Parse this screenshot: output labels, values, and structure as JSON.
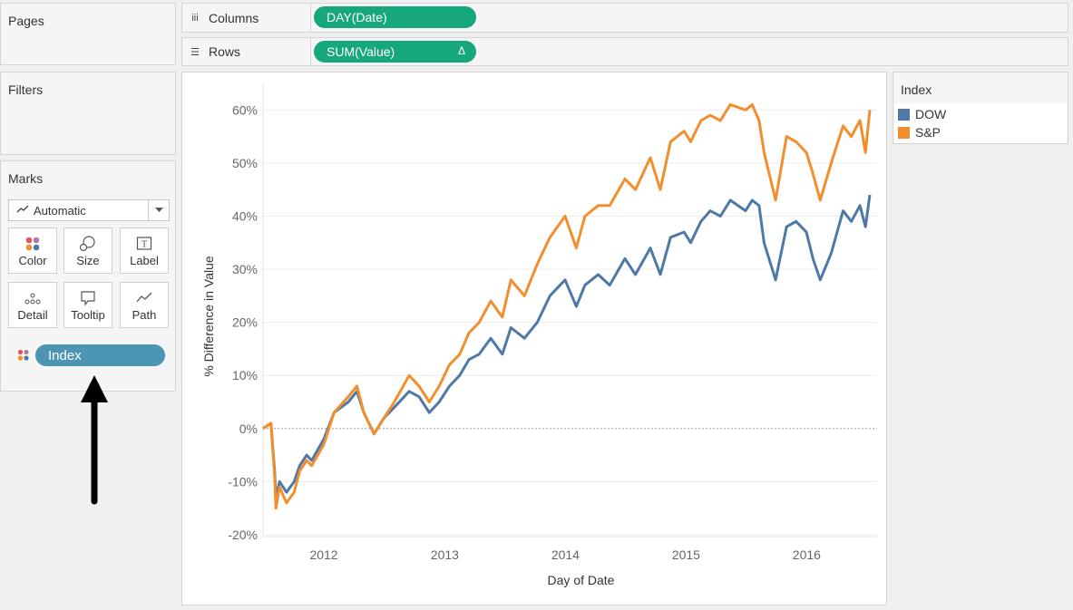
{
  "panels": {
    "pages": {
      "title": "Pages"
    },
    "filters": {
      "title": "Filters"
    },
    "marks": {
      "title": "Marks",
      "mark_type": "Automatic",
      "buttons": {
        "color": "Color",
        "size": "Size",
        "label": "Label",
        "detail": "Detail",
        "tooltip": "Tooltip",
        "path": "Path"
      },
      "field_pill": "Index"
    }
  },
  "shelves": {
    "columns": {
      "label": "Columns",
      "pill": "DAY(Date)"
    },
    "rows": {
      "label": "Rows",
      "pill": "SUM(Value)",
      "pill_badge": "Δ"
    }
  },
  "legend": {
    "title": "Index",
    "items": [
      {
        "label": "DOW",
        "color": "#4e79a7"
      },
      {
        "label": "S&P",
        "color": "#f28e2b"
      }
    ]
  },
  "chart_data": {
    "type": "line",
    "xlabel": "Day of Date",
    "ylabel": "% Difference in Value",
    "x_ticks": [
      "2012",
      "2013",
      "2014",
      "2015",
      "2016"
    ],
    "y_ticks": [
      "60%",
      "50%",
      "40%",
      "30%",
      "20%",
      "10%",
      "0%",
      "-10%",
      "-20%"
    ],
    "ylim": [
      -20,
      65
    ],
    "xlim": [
      "2011-07-01",
      "2016-08-01"
    ],
    "grid": true,
    "zero_line": true,
    "legend_position": "right",
    "series": [
      {
        "name": "DOW",
        "color": "#4e79a7",
        "x": [
          "2011-07-01",
          "2011-07-25",
          "2011-08-05",
          "2011-08-09",
          "2011-08-20",
          "2011-09-10",
          "2011-10-03",
          "2011-10-20",
          "2011-11-10",
          "2011-11-25",
          "2012-01-01",
          "2012-02-01",
          "2012-03-15",
          "2012-04-10",
          "2012-05-01",
          "2012-06-01",
          "2012-07-01",
          "2012-08-01",
          "2012-09-15",
          "2012-10-15",
          "2012-11-15",
          "2012-12-15",
          "2013-01-15",
          "2013-02-15",
          "2013-03-15",
          "2013-04-15",
          "2013-05-20",
          "2013-06-24",
          "2013-07-20",
          "2013-08-30",
          "2013-10-08",
          "2013-11-15",
          "2013-12-31",
          "2014-02-03",
          "2014-03-01",
          "2014-04-10",
          "2014-05-15",
          "2014-06-30",
          "2014-08-01",
          "2014-09-15",
          "2014-10-15",
          "2014-11-15",
          "2014-12-26",
          "2015-01-15",
          "2015-02-15",
          "2015-03-15",
          "2015-04-15",
          "2015-05-15",
          "2015-06-30",
          "2015-07-20",
          "2015-08-10",
          "2015-08-25",
          "2015-09-29",
          "2015-11-01",
          "2015-11-30",
          "2015-12-31",
          "2016-01-20",
          "2016-02-11",
          "2016-03-15",
          "2016-04-20",
          "2016-05-15",
          "2016-06-10",
          "2016-06-27",
          "2016-07-10"
        ],
        "y": [
          0,
          1,
          -8,
          -13,
          -10,
          -12,
          -10,
          -7,
          -5,
          -6,
          -2,
          3,
          5,
          7,
          3,
          -1,
          2,
          4,
          7,
          6,
          3,
          5,
          8,
          10,
          13,
          14,
          17,
          14,
          19,
          17,
          20,
          25,
          28,
          23,
          27,
          29,
          27,
          32,
          29,
          34,
          29,
          36,
          37,
          35,
          39,
          41,
          40,
          43,
          41,
          43,
          42,
          35,
          28,
          38,
          39,
          37,
          32,
          28,
          33,
          41,
          39,
          42,
          38,
          44
        ]
      },
      {
        "name": "S&P",
        "color": "#f28e2b",
        "x": [
          "2011-07-01",
          "2011-07-25",
          "2011-08-05",
          "2011-08-09",
          "2011-08-20",
          "2011-09-10",
          "2011-10-03",
          "2011-10-20",
          "2011-11-10",
          "2011-11-25",
          "2012-01-01",
          "2012-02-01",
          "2012-03-15",
          "2012-04-10",
          "2012-05-01",
          "2012-06-01",
          "2012-07-01",
          "2012-08-01",
          "2012-09-15",
          "2012-10-15",
          "2012-11-15",
          "2012-12-15",
          "2013-01-15",
          "2013-02-15",
          "2013-03-15",
          "2013-04-15",
          "2013-05-20",
          "2013-06-24",
          "2013-07-20",
          "2013-08-30",
          "2013-10-08",
          "2013-11-15",
          "2013-12-31",
          "2014-02-03",
          "2014-03-01",
          "2014-04-10",
          "2014-05-15",
          "2014-06-30",
          "2014-08-01",
          "2014-09-15",
          "2014-10-15",
          "2014-11-15",
          "2014-12-26",
          "2015-01-15",
          "2015-02-15",
          "2015-03-15",
          "2015-04-15",
          "2015-05-15",
          "2015-06-30",
          "2015-07-20",
          "2015-08-10",
          "2015-08-25",
          "2015-09-29",
          "2015-11-01",
          "2015-11-30",
          "2015-12-31",
          "2016-01-20",
          "2016-02-11",
          "2016-03-15",
          "2016-04-20",
          "2016-05-15",
          "2016-06-10",
          "2016-06-27",
          "2016-07-10"
        ],
        "y": [
          0,
          1,
          -9,
          -15,
          -11,
          -14,
          -12,
          -8,
          -6,
          -7,
          -3,
          3,
          6,
          8,
          3,
          -1,
          2,
          5,
          10,
          8,
          5,
          8,
          12,
          14,
          18,
          20,
          24,
          21,
          28,
          25,
          31,
          36,
          40,
          34,
          40,
          42,
          42,
          47,
          45,
          51,
          45,
          54,
          56,
          54,
          58,
          59,
          58,
          61,
          60,
          61,
          58,
          52,
          43,
          55,
          54,
          52,
          48,
          43,
          50,
          57,
          55,
          58,
          52,
          60
        ]
      }
    ]
  }
}
